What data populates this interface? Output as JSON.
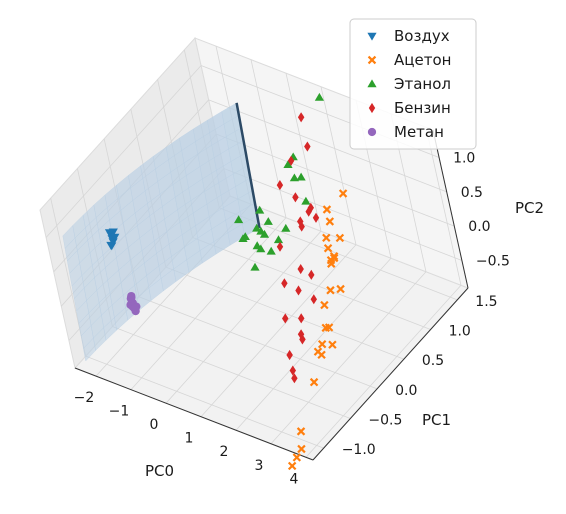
{
  "chart_data": {
    "type": "scatter",
    "projection": "3d",
    "xlabel": "PC0",
    "ylabel": "PC1",
    "zlabel": "PC2",
    "x_ticks": [
      "−2",
      "−1",
      "0",
      "1",
      "2",
      "3",
      "4"
    ],
    "y_ticks": [
      "−1.0",
      "−0.5",
      "0.0",
      "0.5",
      "1.0",
      "1.5"
    ],
    "z_ticks": [
      "−0.5",
      "0.0",
      "0.5",
      "1.0"
    ],
    "xlim": [
      -2.6,
      4.2
    ],
    "ylim": [
      -1.2,
      1.7
    ],
    "zlim": [
      -0.9,
      1.4
    ],
    "grid": true,
    "legend_position": "top-right",
    "surface": {
      "color": "#b9cfe3",
      "edge_color": "#2c4a66"
    },
    "series": [
      {
        "name": "Воздух",
        "marker": "triangle-down",
        "color": "#1f77b4",
        "points": [
          [
            -2.0,
            -0.5,
            0.5
          ],
          [
            -2.05,
            -0.48,
            0.52
          ],
          [
            -1.95,
            -0.52,
            0.48
          ],
          [
            -2.02,
            -0.45,
            0.55
          ],
          [
            -1.98,
            -0.55,
            0.45
          ],
          [
            -2.04,
            -0.5,
            0.58
          ],
          [
            -1.97,
            -0.47,
            0.5
          ],
          [
            -2.0,
            -0.53,
            0.42
          ]
        ]
      },
      {
        "name": "Ацетон",
        "marker": "x",
        "color": "#ff7f0e",
        "points": [
          [
            2.0,
            0.9,
            0.5
          ],
          [
            2.2,
            0.7,
            0.3
          ],
          [
            1.8,
            1.0,
            0.2
          ],
          [
            2.4,
            0.6,
            0.1
          ],
          [
            2.6,
            0.5,
            0.4
          ],
          [
            2.1,
            0.8,
            -0.1
          ],
          [
            2.5,
            0.6,
            -0.3
          ],
          [
            2.3,
            0.4,
            -0.4
          ],
          [
            2.8,
            0.3,
            0.0
          ],
          [
            2.6,
            0.2,
            -0.5
          ],
          [
            2.9,
            0.1,
            -0.6
          ],
          [
            2.7,
            0.0,
            -0.7
          ],
          [
            2.4,
            0.1,
            -0.8
          ],
          [
            3.0,
            -0.1,
            -0.4
          ],
          [
            2.2,
            1.1,
            0.6
          ],
          [
            1.9,
            0.9,
            -0.2
          ],
          [
            2.8,
            0.4,
            0.3
          ],
          [
            2.5,
            0.3,
            -0.6
          ],
          [
            3.4,
            -0.9,
            -0.9
          ],
          [
            3.5,
            -1.0,
            -1.05
          ],
          [
            3.4,
            -1.05,
            -1.15
          ],
          [
            3.3,
            -1.1,
            -1.25
          ],
          [
            2.9,
            -0.3,
            -0.8
          ],
          [
            2.0,
            1.0,
            0.0
          ]
        ]
      },
      {
        "name": "Этанол",
        "marker": "triangle-up",
        "color": "#2ca02c",
        "points": [
          [
            0.0,
            0.5,
            0.3
          ],
          [
            0.3,
            0.4,
            0.2
          ],
          [
            0.5,
            0.6,
            0.1
          ],
          [
            0.8,
            0.5,
            0.0
          ],
          [
            1.0,
            0.7,
            0.2
          ],
          [
            0.2,
            0.7,
            0.0
          ],
          [
            0.6,
            0.3,
            -0.1
          ],
          [
            -0.2,
            0.6,
            -0.1
          ],
          [
            0.4,
            0.5,
            0.0
          ],
          [
            0.7,
            0.4,
            0.1
          ],
          [
            1.2,
            0.9,
            0.8
          ],
          [
            1.1,
            1.0,
            1.0
          ],
          [
            1.3,
            0.8,
            1.1
          ],
          [
            1.0,
            1.1,
            0.6
          ],
          [
            0.9,
            0.6,
            0.1
          ],
          [
            0.1,
            0.8,
            0.2
          ],
          [
            1.5,
            1.4,
            1.6
          ],
          [
            0.5,
            0.7,
            0.2
          ],
          [
            0.3,
            0.6,
            0.15
          ],
          [
            1.4,
            0.9,
            0.5
          ]
        ]
      },
      {
        "name": "Бензин",
        "marker": "diamond",
        "color": "#d62728",
        "points": [
          [
            1.0,
            1.3,
            1.3
          ],
          [
            1.2,
            1.2,
            1.0
          ],
          [
            0.8,
            1.1,
            0.8
          ],
          [
            1.1,
            0.9,
            0.5
          ],
          [
            1.3,
            0.8,
            0.2
          ],
          [
            0.9,
            0.6,
            0.0
          ],
          [
            1.5,
            0.7,
            0.4
          ],
          [
            1.6,
            0.5,
            -0.1
          ],
          [
            1.2,
            0.4,
            -0.3
          ],
          [
            1.8,
            0.3,
            -0.2
          ],
          [
            1.9,
            0.2,
            -0.5
          ],
          [
            2.0,
            0.1,
            -0.7
          ],
          [
            1.7,
            0.0,
            -0.9
          ],
          [
            1.4,
            0.2,
            -0.6
          ],
          [
            2.1,
            0.4,
            0.0
          ],
          [
            0.7,
            0.9,
            0.6
          ],
          [
            1.3,
            1.0,
            0.3
          ],
          [
            2.2,
            0.0,
            -0.5
          ],
          [
            1.6,
            0.9,
            0.3
          ],
          [
            1.8,
            0.5,
            -0.5
          ],
          [
            1.9,
            -0.1,
            -1.0
          ],
          [
            2.0,
            -0.15,
            -1.05
          ],
          [
            1.0,
            1.1,
            0.1
          ]
        ]
      },
      {
        "name": "Метан",
        "marker": "circle",
        "color": "#9467bd",
        "points": [
          [
            -1.8,
            -0.5,
            -0.4
          ],
          [
            -1.85,
            -0.48,
            -0.35
          ],
          [
            -1.75,
            -0.52,
            -0.45
          ],
          [
            -1.82,
            -0.45,
            -0.5
          ],
          [
            -1.78,
            -0.55,
            -0.38
          ],
          [
            -1.8,
            -0.5,
            -0.3
          ],
          [
            -1.83,
            -0.47,
            -0.55
          ],
          [
            -1.77,
            -0.53,
            -0.42
          ],
          [
            -1.81,
            -0.51,
            -0.33
          ],
          [
            -1.79,
            -0.49,
            -0.48
          ]
        ]
      }
    ]
  }
}
